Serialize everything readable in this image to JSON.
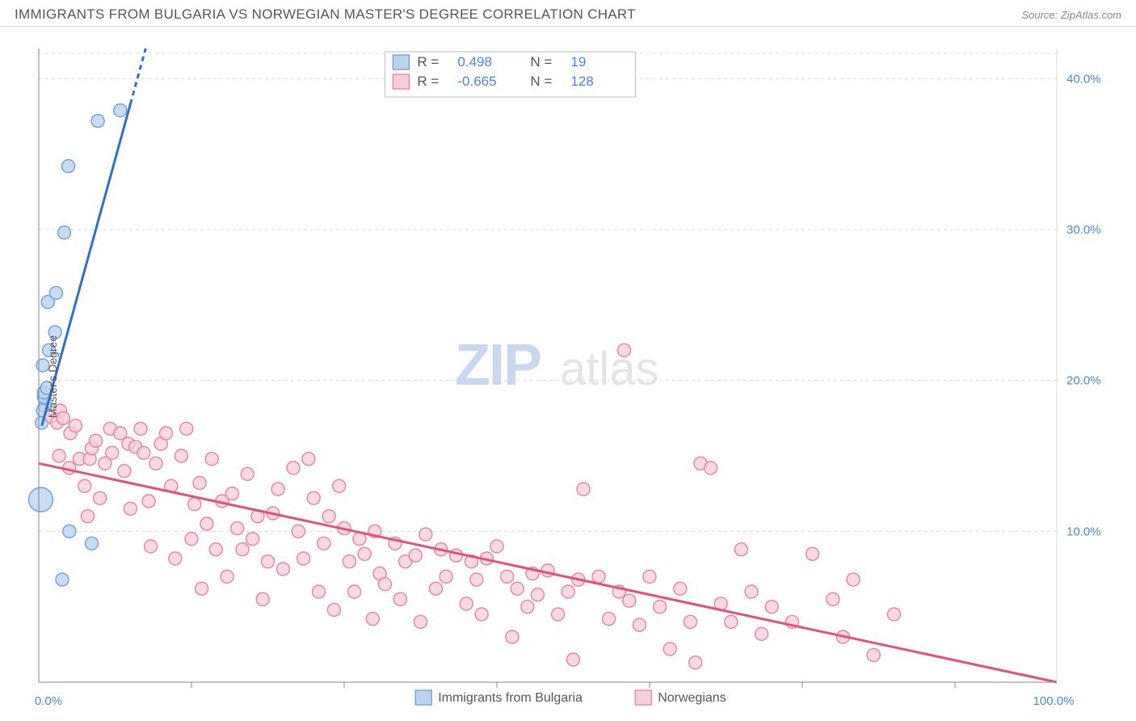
{
  "header": {
    "title": "IMMIGRANTS FROM BULGARIA VS NORWEGIAN MASTER'S DEGREE CORRELATION CHART",
    "source_label": "Source: ZipAtlas.com"
  },
  "chart": {
    "type": "scatter",
    "ylabel": "Master's Degree",
    "xlim": [
      0,
      100
    ],
    "ylim": [
      0,
      42
    ],
    "yticks": [
      10,
      20,
      30,
      40
    ],
    "ytick_labels": [
      "10.0%",
      "20.0%",
      "30.0%",
      "40.0%"
    ],
    "xticks": [
      0,
      100
    ],
    "xtick_labels": [
      "0.0%",
      "100.0%"
    ],
    "xtick_minor": [
      15,
      30,
      45,
      60,
      75,
      90
    ],
    "grid_color": "#d8d8d8",
    "background_color": "#ffffff",
    "axis_color": "#888888",
    "label_color": "#4b86d6",
    "watermark": {
      "zip": "ZIP",
      "atlas": "atlas",
      "zip_color": "#c9d8ee",
      "atlas_color": "#e4e4e4"
    },
    "series": [
      {
        "name": "Immigrants from Bulgaria",
        "marker_color_fill": "#bcd3f0",
        "marker_color_stroke": "#6d9fe0",
        "marker_radius": 8,
        "marker_opacity": 0.8,
        "line_color": "#2f6fc6",
        "line_width": 3,
        "trend": {
          "x1": 0.3,
          "y1": 17.0,
          "x2": 10.5,
          "y2": 42.0,
          "dash_from_x": 9.0
        },
        "R": "0.498",
        "N": "19",
        "points": [
          {
            "x": 0.3,
            "y": 17.2
          },
          {
            "x": 0.6,
            "y": 18.3
          },
          {
            "x": 0.5,
            "y": 18.9
          },
          {
            "x": 0.5,
            "y": 19.2
          },
          {
            "x": 0.8,
            "y": 19.5
          },
          {
            "x": 0.4,
            "y": 21.0
          },
          {
            "x": 1.0,
            "y": 22.0
          },
          {
            "x": 1.6,
            "y": 23.2
          },
          {
            "x": 0.9,
            "y": 25.2
          },
          {
            "x": 1.7,
            "y": 25.8
          },
          {
            "x": 2.5,
            "y": 29.8
          },
          {
            "x": 2.9,
            "y": 34.2
          },
          {
            "x": 5.8,
            "y": 37.2
          },
          {
            "x": 8.0,
            "y": 37.9
          },
          {
            "x": 2.3,
            "y": 6.8
          },
          {
            "x": 5.2,
            "y": 9.2
          },
          {
            "x": 3.0,
            "y": 10.0
          },
          {
            "x": 0.2,
            "y": 12.1,
            "r": 15
          },
          {
            "x": 0.4,
            "y": 18.0
          }
        ]
      },
      {
        "name": "Norwegians",
        "marker_color_fill": "#f7cdd8",
        "marker_color_stroke": "#ec7ea0",
        "marker_radius": 8,
        "marker_opacity": 0.75,
        "line_color": "#e24f7b",
        "line_width": 3,
        "trend": {
          "x1": 0,
          "y1": 14.5,
          "x2": 100,
          "y2": 0.0
        },
        "R": "-0.665",
        "N": "128",
        "points": [
          {
            "x": 1.2,
            "y": 17.6
          },
          {
            "x": 1.8,
            "y": 17.2
          },
          {
            "x": 2.1,
            "y": 18.0
          },
          {
            "x": 2.4,
            "y": 17.5
          },
          {
            "x": 2.0,
            "y": 15.0
          },
          {
            "x": 3.0,
            "y": 14.2
          },
          {
            "x": 3.1,
            "y": 16.5
          },
          {
            "x": 3.6,
            "y": 17.0
          },
          {
            "x": 4.0,
            "y": 14.8
          },
          {
            "x": 4.5,
            "y": 13.0
          },
          {
            "x": 4.8,
            "y": 11.0
          },
          {
            "x": 5.0,
            "y": 14.8
          },
          {
            "x": 5.2,
            "y": 15.5
          },
          {
            "x": 5.6,
            "y": 16.0
          },
          {
            "x": 6.0,
            "y": 12.2
          },
          {
            "x": 6.5,
            "y": 14.5
          },
          {
            "x": 7.0,
            "y": 16.8
          },
          {
            "x": 7.2,
            "y": 15.2
          },
          {
            "x": 8.0,
            "y": 16.5
          },
          {
            "x": 8.4,
            "y": 14.0
          },
          {
            "x": 8.8,
            "y": 15.8
          },
          {
            "x": 9.0,
            "y": 11.5
          },
          {
            "x": 9.5,
            "y": 15.6
          },
          {
            "x": 10.0,
            "y": 16.8
          },
          {
            "x": 10.3,
            "y": 15.2
          },
          {
            "x": 10.8,
            "y": 12.0
          },
          {
            "x": 11.0,
            "y": 9.0
          },
          {
            "x": 11.5,
            "y": 14.5
          },
          {
            "x": 12.0,
            "y": 15.8
          },
          {
            "x": 12.5,
            "y": 16.5
          },
          {
            "x": 13.0,
            "y": 13.0
          },
          {
            "x": 13.4,
            "y": 8.2
          },
          {
            "x": 14.0,
            "y": 15.0
          },
          {
            "x": 14.5,
            "y": 16.8
          },
          {
            "x": 15.0,
            "y": 9.5
          },
          {
            "x": 15.3,
            "y": 11.8
          },
          {
            "x": 15.8,
            "y": 13.2
          },
          {
            "x": 16.0,
            "y": 6.2
          },
          {
            "x": 16.5,
            "y": 10.5
          },
          {
            "x": 17.0,
            "y": 14.8
          },
          {
            "x": 17.4,
            "y": 8.8
          },
          {
            "x": 18.0,
            "y": 12.0
          },
          {
            "x": 18.5,
            "y": 7.0
          },
          {
            "x": 19.0,
            "y": 12.5
          },
          {
            "x": 19.5,
            "y": 10.2
          },
          {
            "x": 20.0,
            "y": 8.8
          },
          {
            "x": 20.5,
            "y": 13.8
          },
          {
            "x": 21.0,
            "y": 9.5
          },
          {
            "x": 21.5,
            "y": 11.0
          },
          {
            "x": 22.0,
            "y": 5.5
          },
          {
            "x": 22.5,
            "y": 8.0
          },
          {
            "x": 23.0,
            "y": 11.2
          },
          {
            "x": 23.5,
            "y": 12.8
          },
          {
            "x": 24.0,
            "y": 7.5
          },
          {
            "x": 25.0,
            "y": 14.2
          },
          {
            "x": 25.5,
            "y": 10.0
          },
          {
            "x": 26.0,
            "y": 8.2
          },
          {
            "x": 26.5,
            "y": 14.8
          },
          {
            "x": 27.0,
            "y": 12.2
          },
          {
            "x": 27.5,
            "y": 6.0
          },
          {
            "x": 28.0,
            "y": 9.2
          },
          {
            "x": 28.5,
            "y": 11.0
          },
          {
            "x": 29.0,
            "y": 4.8
          },
          {
            "x": 29.5,
            "y": 13.0
          },
          {
            "x": 30.0,
            "y": 10.2
          },
          {
            "x": 30.5,
            "y": 8.0
          },
          {
            "x": 31.0,
            "y": 6.0
          },
          {
            "x": 31.5,
            "y": 9.5
          },
          {
            "x": 32.0,
            "y": 8.5
          },
          {
            "x": 32.8,
            "y": 4.2
          },
          {
            "x": 33.0,
            "y": 10.0
          },
          {
            "x": 33.5,
            "y": 7.2
          },
          {
            "x": 34.0,
            "y": 6.5
          },
          {
            "x": 35.0,
            "y": 9.2
          },
          {
            "x": 35.5,
            "y": 5.5
          },
          {
            "x": 36.0,
            "y": 8.0
          },
          {
            "x": 37.0,
            "y": 8.4
          },
          {
            "x": 37.5,
            "y": 4.0
          },
          {
            "x": 38.0,
            "y": 9.8
          },
          {
            "x": 39.0,
            "y": 6.2
          },
          {
            "x": 39.5,
            "y": 8.8
          },
          {
            "x": 40.0,
            "y": 7.0
          },
          {
            "x": 41.0,
            "y": 8.4
          },
          {
            "x": 42.0,
            "y": 5.2
          },
          {
            "x": 42.5,
            "y": 8.0
          },
          {
            "x": 43.0,
            "y": 6.8
          },
          {
            "x": 43.5,
            "y": 4.5
          },
          {
            "x": 44.0,
            "y": 8.2
          },
          {
            "x": 45.0,
            "y": 9.0
          },
          {
            "x": 46.0,
            "y": 7.0
          },
          {
            "x": 46.5,
            "y": 3.0
          },
          {
            "x": 47.0,
            "y": 6.2
          },
          {
            "x": 48.0,
            "y": 5.0
          },
          {
            "x": 48.5,
            "y": 7.2
          },
          {
            "x": 49.0,
            "y": 5.8
          },
          {
            "x": 50.0,
            "y": 7.4
          },
          {
            "x": 51.0,
            "y": 4.5
          },
          {
            "x": 52.0,
            "y": 6.0
          },
          {
            "x": 52.5,
            "y": 1.5
          },
          {
            "x": 53.0,
            "y": 6.8
          },
          {
            "x": 53.5,
            "y": 12.8
          },
          {
            "x": 55.0,
            "y": 7.0
          },
          {
            "x": 56.0,
            "y": 4.2
          },
          {
            "x": 57.0,
            "y": 6.0
          },
          {
            "x": 57.5,
            "y": 22.0
          },
          {
            "x": 58.0,
            "y": 5.4
          },
          {
            "x": 59.0,
            "y": 3.8
          },
          {
            "x": 60.0,
            "y": 7.0
          },
          {
            "x": 61.0,
            "y": 5.0
          },
          {
            "x": 62.0,
            "y": 2.2
          },
          {
            "x": 63.0,
            "y": 6.2
          },
          {
            "x": 64.0,
            "y": 4.0
          },
          {
            "x": 64.5,
            "y": 1.3
          },
          {
            "x": 65.0,
            "y": 14.5
          },
          {
            "x": 66.0,
            "y": 14.2
          },
          {
            "x": 67.0,
            "y": 5.2
          },
          {
            "x": 68.0,
            "y": 4.0
          },
          {
            "x": 69.0,
            "y": 8.8
          },
          {
            "x": 70.0,
            "y": 6.0
          },
          {
            "x": 71.0,
            "y": 3.2
          },
          {
            "x": 72.0,
            "y": 5.0
          },
          {
            "x": 74.0,
            "y": 4.0
          },
          {
            "x": 76.0,
            "y": 8.5
          },
          {
            "x": 78.0,
            "y": 5.5
          },
          {
            "x": 79.0,
            "y": 3.0
          },
          {
            "x": 80.0,
            "y": 6.8
          },
          {
            "x": 82.0,
            "y": 1.8
          },
          {
            "x": 84.0,
            "y": 4.5
          }
        ]
      }
    ],
    "legend_top": {
      "rows": [
        {
          "swatch_fill": "#bcd3f0",
          "swatch_stroke": "#6d9fe0",
          "r_label": "R =",
          "r_value": "0.498",
          "n_label": "N =",
          "n_value": "19"
        },
        {
          "swatch_fill": "#f7cdd8",
          "swatch_stroke": "#ec7ea0",
          "r_label": "R =",
          "r_value": "-0.665",
          "n_label": "N =",
          "n_value": "128"
        }
      ]
    },
    "legend_bottom": {
      "items": [
        {
          "swatch_fill": "#bcd3f0",
          "swatch_stroke": "#6d9fe0",
          "label": "Immigrants from Bulgaria"
        },
        {
          "swatch_fill": "#f7cdd8",
          "swatch_stroke": "#ec7ea0",
          "label": "Norwegians"
        }
      ]
    }
  }
}
